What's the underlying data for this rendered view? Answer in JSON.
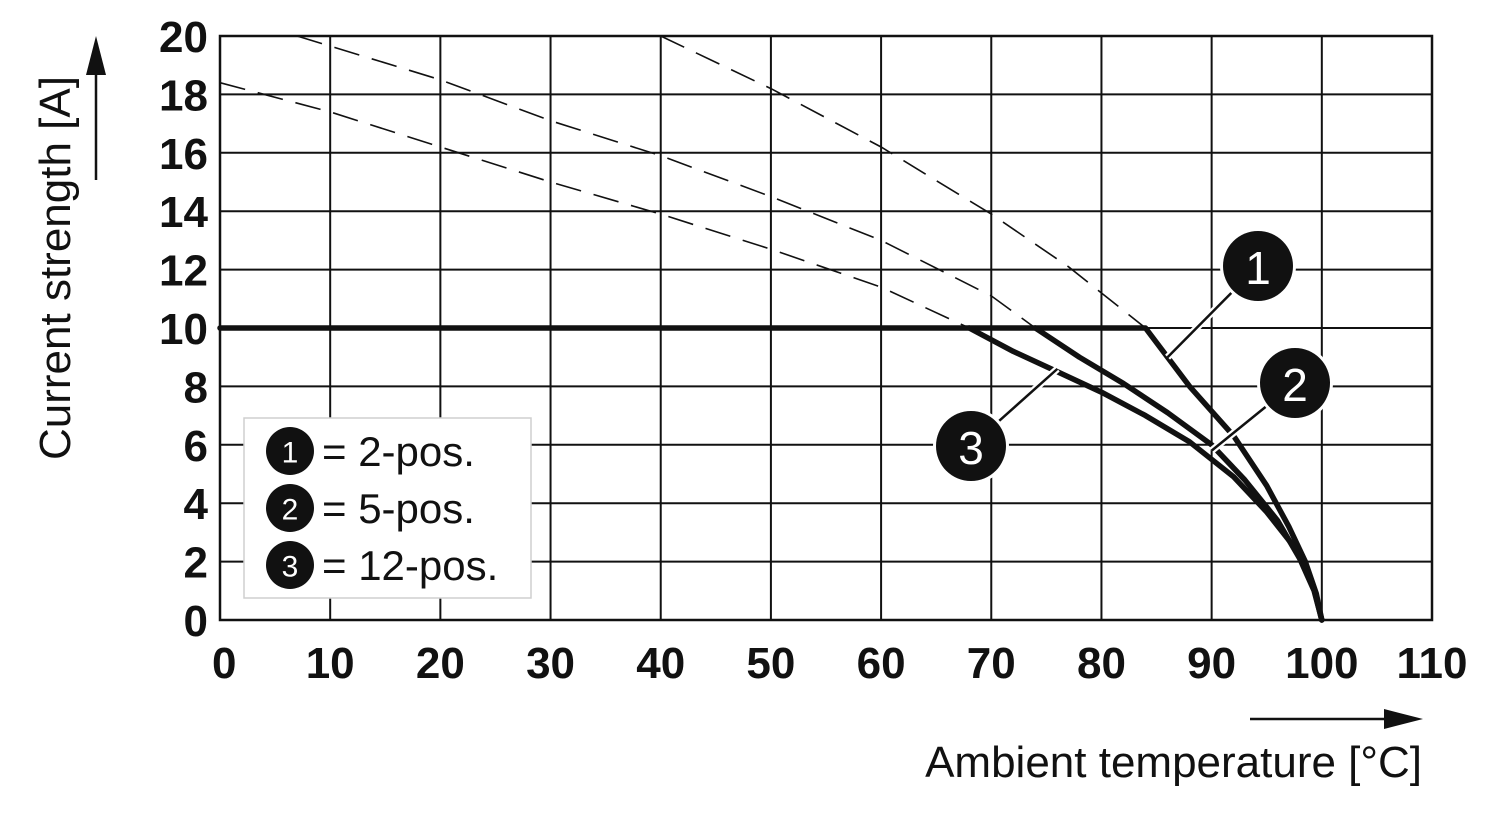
{
  "chart_data": {
    "type": "line",
    "xlabel": "Ambient temperature [°C]",
    "ylabel": "Current strength [A]",
    "xlim": [
      0,
      110
    ],
    "ylim": [
      0,
      20
    ],
    "x_ticks": [
      "0",
      "10",
      "20",
      "30",
      "40",
      "50",
      "60",
      "70",
      "80",
      "90",
      "100",
      "110"
    ],
    "y_ticks": [
      "0",
      "2",
      "4",
      "6",
      "8",
      "10",
      "12",
      "14",
      "16",
      "18",
      "20"
    ],
    "grid": true,
    "series": [
      {
        "name": "1",
        "style": "solid",
        "x": [
          0,
          84,
          88,
          92,
          95,
          97,
          98.5,
          99.5,
          100
        ],
        "y": [
          10,
          10,
          8,
          6.3,
          4.6,
          3.2,
          2.0,
          0.9,
          0
        ]
      },
      {
        "name": "2",
        "style": "solid",
        "x": [
          74,
          78,
          82,
          86,
          90,
          93,
          96,
          98,
          99.3,
          100
        ],
        "y": [
          10,
          9.0,
          8.1,
          7.1,
          6.0,
          4.8,
          3.4,
          2.1,
          1.0,
          0
        ]
      },
      {
        "name": "3",
        "style": "solid",
        "x": [
          68,
          72,
          76,
          80,
          84,
          88,
          92,
          95,
          97.5,
          99.2,
          100
        ],
        "y": [
          10,
          9.2,
          8.5,
          7.8,
          7.0,
          6.1,
          4.9,
          3.7,
          2.5,
          1.2,
          0
        ]
      },
      {
        "name": "1",
        "style": "dashed",
        "x": [
          40,
          50,
          60,
          70,
          77,
          84
        ],
        "y": [
          20,
          18.2,
          16.2,
          13.9,
          12.1,
          10
        ]
      },
      {
        "name": "2",
        "style": "dashed",
        "x": [
          7,
          20,
          30,
          40,
          50,
          60,
          70,
          74
        ],
        "y": [
          20,
          18.5,
          17.1,
          15.9,
          14.5,
          13.0,
          11.1,
          10
        ]
      },
      {
        "name": "3",
        "style": "dashed",
        "x": [
          0,
          10,
          20,
          30,
          40,
          50,
          60,
          68
        ],
        "y": [
          18.4,
          17.4,
          16.2,
          15.0,
          13.9,
          12.7,
          11.4,
          10
        ]
      }
    ],
    "annotations": [
      {
        "label": "1",
        "point_x": 86,
        "point_y": 9.0
      },
      {
        "label": "2",
        "point_x": 90,
        "point_y": 5.8
      },
      {
        "label": "3",
        "point_x": 76,
        "point_y": 8.6
      }
    ],
    "legend": {
      "placement": "bottom-left",
      "entries": [
        {
          "marker": "1",
          "text": "= 2-pos."
        },
        {
          "marker": "2",
          "text": "= 5-pos."
        },
        {
          "marker": "3",
          "text": "= 12-pos."
        }
      ]
    }
  }
}
